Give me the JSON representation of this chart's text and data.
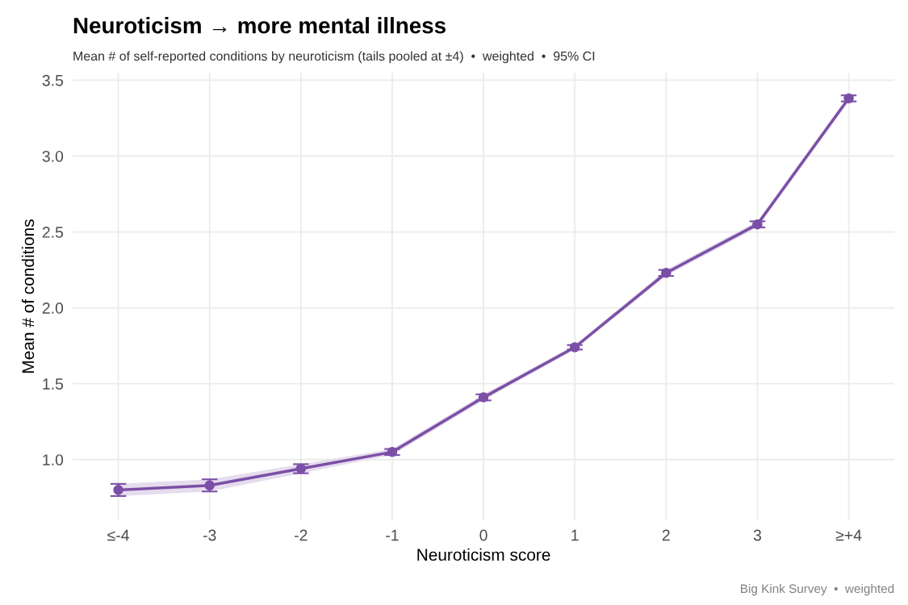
{
  "chart_data": {
    "type": "line",
    "title": "Neuroticism → more mental illness",
    "subtitle": "Mean # of self-reported conditions by neuroticism (tails pooled at ±4)  •  weighted  •  95% CI",
    "xlabel": "Neuroticism score",
    "ylabel": "Mean # of conditions",
    "categories": [
      "≤-4",
      "-3",
      "-2",
      "-1",
      "0",
      "1",
      "2",
      "3",
      "≥+4"
    ],
    "series": [
      {
        "color": "#7b4fa6",
        "values": [
          0.8,
          0.83,
          0.94,
          1.05,
          1.41,
          1.74,
          2.23,
          2.55,
          3.38
        ],
        "errors": [
          0.04,
          0.04,
          0.03,
          0.02,
          0.02,
          0.015,
          0.02,
          0.02,
          0.02
        ],
        "lower": [
          0.76,
          0.79,
          0.91,
          1.03,
          1.39,
          1.725,
          2.21,
          2.53,
          3.36
        ],
        "upper": [
          0.84,
          0.87,
          0.97,
          1.07,
          1.43,
          1.755,
          2.25,
          2.57,
          3.4
        ]
      }
    ],
    "ylim": [
      0.6,
      3.55
    ],
    "yticks": [
      {
        "value": 1,
        "label": "1.0"
      },
      1.5,
      {
        "value": 2,
        "label": "2.0"
      },
      2.5,
      {
        "value": 3,
        "label": "3.0"
      },
      3.5
    ],
    "grid": true,
    "marker": "circle",
    "line_style": "solid",
    "annotations": [
      "Big Kink Survey  •  weighted"
    ]
  }
}
